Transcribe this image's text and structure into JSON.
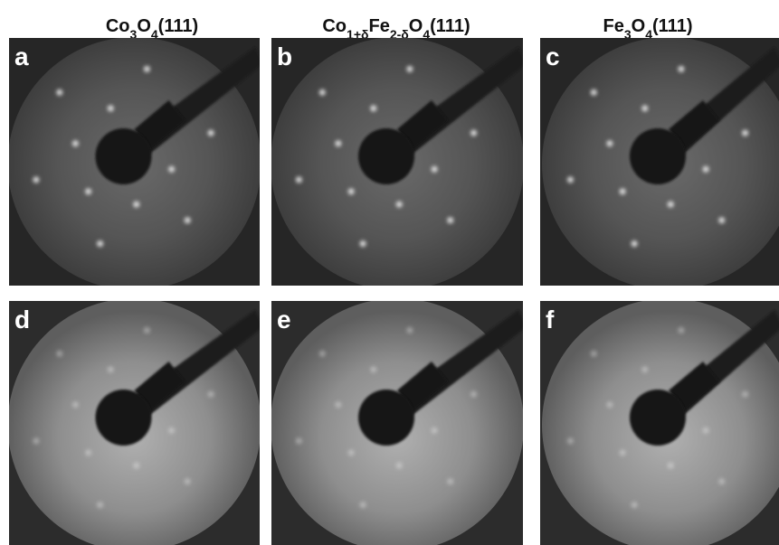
{
  "columns": [
    {
      "title": [
        [
          "Co",
          "3"
        ],
        [
          "O",
          "4"
        ],
        [
          "(111)"
        ]
      ]
    },
    {
      "title": [
        [
          "Co",
          "1+δ"
        ],
        [
          "Fe",
          "2-δ"
        ],
        [
          "O",
          "4"
        ],
        [
          "(111)"
        ]
      ]
    },
    {
      "title": [
        [
          "Fe",
          "3"
        ],
        [
          "O",
          "4"
        ],
        [
          "(111)"
        ]
      ]
    }
  ],
  "panels": [
    {
      "label": "a"
    },
    {
      "label": "b"
    },
    {
      "label": "c"
    },
    {
      "label": "d"
    },
    {
      "label": "e"
    },
    {
      "label": "f"
    }
  ]
}
